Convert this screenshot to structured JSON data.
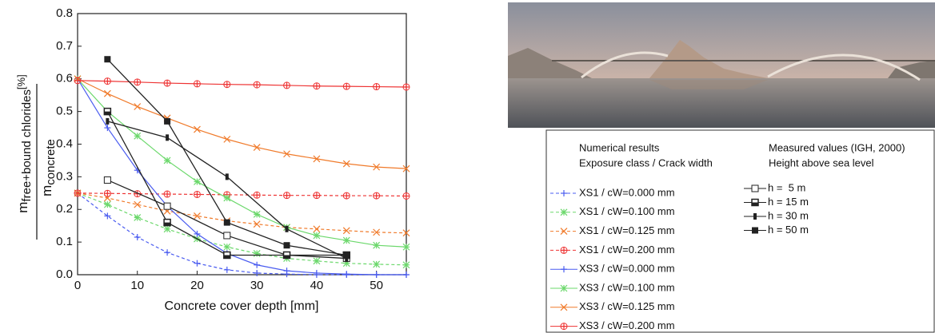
{
  "chart_data": {
    "type": "line",
    "x_label": "Concrete cover depth [mm]",
    "y_label": {
      "numerator_symbol": "m",
      "numerator_subscript": "free+bound chlorides",
      "denominator_symbol": "m",
      "denominator_subscript": "concrete",
      "unit": "[%]"
    },
    "xlim": [
      0,
      55
    ],
    "xticks": [
      0,
      10,
      20,
      30,
      40,
      50
    ],
    "ylim": [
      0,
      0.8
    ],
    "yticks": [
      {
        "value": 0,
        "label": "0.0"
      },
      0.1,
      0.2,
      0.3,
      0.4,
      0.5,
      0.6,
      0.7,
      0.8
    ],
    "legend": {
      "model_title": "Numerical results",
      "model_subtitle": "Exposure class / Crack width",
      "measured_title": "Measured values (IGH, 2000)",
      "measured_subtitle": "Height above sea level"
    },
    "series": [
      {
        "name": "XS1 / cW=0.000 mm",
        "color": "#4a5cf0",
        "dashed": true,
        "marker": "plus",
        "group": "model",
        "x": [
          0,
          5,
          10,
          15,
          20,
          25,
          30,
          35,
          40,
          45,
          50,
          55
        ],
        "values": [
          0.25,
          0.18,
          0.115,
          0.068,
          0.035,
          0.015,
          0.005,
          0.002,
          0,
          0,
          0,
          0
        ]
      },
      {
        "name": "XS1 / cW=0.100 mm",
        "color": "#6bd86b",
        "dashed": true,
        "marker": "star",
        "group": "model",
        "x": [
          0,
          5,
          10,
          15,
          20,
          25,
          30,
          35,
          40,
          45,
          50,
          55
        ],
        "values": [
          0.25,
          0.215,
          0.175,
          0.14,
          0.11,
          0.085,
          0.065,
          0.05,
          0.042,
          0.035,
          0.032,
          0.03
        ]
      },
      {
        "name": "XS1 / cW=0.125 mm",
        "color": "#f07a2a",
        "dashed": true,
        "marker": "cross",
        "group": "model",
        "x": [
          0,
          5,
          10,
          15,
          20,
          25,
          30,
          35,
          40,
          45,
          50,
          55
        ],
        "values": [
          0.25,
          0.235,
          0.215,
          0.195,
          0.18,
          0.165,
          0.155,
          0.145,
          0.14,
          0.135,
          0.13,
          0.128
        ]
      },
      {
        "name": "XS1 / cW=0.200 mm",
        "color": "#ee3333",
        "dashed": true,
        "marker": "circleplus",
        "group": "model",
        "x": [
          0,
          5,
          10,
          15,
          20,
          25,
          30,
          35,
          40,
          45,
          50,
          55
        ],
        "values": [
          0.25,
          0.249,
          0.248,
          0.247,
          0.246,
          0.245,
          0.244,
          0.243,
          0.243,
          0.242,
          0.242,
          0.241
        ]
      },
      {
        "name": "XS3 / cW=0.000 mm",
        "color": "#4a5cf0",
        "dashed": false,
        "marker": "plus",
        "group": "model",
        "x": [
          0,
          5,
          10,
          15,
          20,
          25,
          30,
          35,
          40,
          45,
          50,
          55
        ],
        "values": [
          0.6,
          0.45,
          0.32,
          0.21,
          0.125,
          0.065,
          0.03,
          0.012,
          0.005,
          0.002,
          0,
          0
        ]
      },
      {
        "name": "XS3 / cW=0.100 mm",
        "color": "#6bd86b",
        "dashed": false,
        "marker": "star",
        "group": "model",
        "x": [
          0,
          5,
          10,
          15,
          20,
          25,
          30,
          35,
          40,
          45,
          50,
          55
        ],
        "values": [
          0.6,
          0.5,
          0.425,
          0.35,
          0.285,
          0.235,
          0.185,
          0.145,
          0.12,
          0.105,
          0.09,
          0.085
        ]
      },
      {
        "name": "XS3 / cW=0.125 mm",
        "color": "#f07a2a",
        "dashed": false,
        "marker": "cross",
        "group": "model",
        "x": [
          0,
          5,
          10,
          15,
          20,
          25,
          30,
          35,
          40,
          45,
          50,
          55
        ],
        "values": [
          0.6,
          0.555,
          0.515,
          0.48,
          0.445,
          0.415,
          0.39,
          0.37,
          0.355,
          0.34,
          0.33,
          0.325
        ]
      },
      {
        "name": "XS3 / cW=0.200 mm",
        "color": "#ee3333",
        "dashed": false,
        "marker": "circleplus",
        "group": "model",
        "x": [
          0,
          5,
          10,
          15,
          20,
          25,
          30,
          35,
          40,
          45,
          50,
          55
        ],
        "values": [
          0.595,
          0.593,
          0.59,
          0.587,
          0.585,
          0.583,
          0.582,
          0.58,
          0.578,
          0.577,
          0.576,
          0.575
        ]
      },
      {
        "name": "h =  5 m",
        "color": "#222222",
        "dashed": false,
        "marker": "opensquare",
        "group": "measured",
        "x": [
          5,
          15,
          25,
          35,
          45
        ],
        "values": [
          0.29,
          0.21,
          0.12,
          0.06,
          0.05
        ]
      },
      {
        "name": "h = 15 m",
        "color": "#222222",
        "dashed": false,
        "marker": "halfsquare",
        "group": "measured",
        "x": [
          5,
          15,
          25,
          35,
          45
        ],
        "values": [
          0.5,
          0.16,
          0.06,
          0.06,
          0.06
        ]
      },
      {
        "name": "h = 30 m",
        "color": "#222222",
        "dashed": false,
        "marker": "bar",
        "group": "measured",
        "x": [
          5,
          15,
          25,
          35,
          45
        ],
        "values": [
          0.47,
          0.42,
          0.3,
          0.14,
          0.05
        ]
      },
      {
        "name": "h = 50 m",
        "color": "#222222",
        "dashed": false,
        "marker": "filledsquare",
        "group": "measured",
        "x": [
          5,
          15,
          25,
          35,
          45
        ],
        "values": [
          0.66,
          0.47,
          0.16,
          0.09,
          0.06
        ]
      }
    ]
  }
}
